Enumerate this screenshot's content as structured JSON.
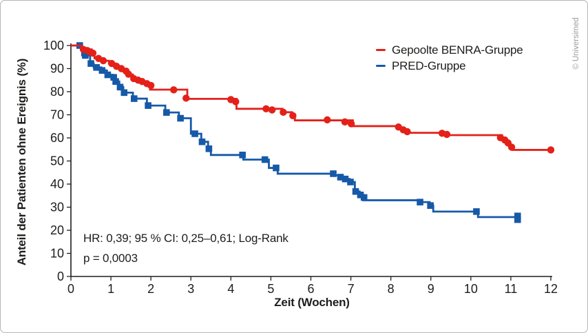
{
  "figure": {
    "copyright": "© Universimed"
  },
  "colors": {
    "axis": "#1d1d1b",
    "text": "#1d1d1b",
    "muted_text": "#9d9d9c",
    "border": "#b5b5b5",
    "background": "#ffffff",
    "benra_red": "#e32119",
    "pred_blue": "#1659a8"
  },
  "chart_data": {
    "type": "line",
    "subtype": "kaplan-meier-step",
    "title": "",
    "xlabel": "Zeit (Wochen)",
    "ylabel": "Anteil der Patienten ohne Ereignis (%)",
    "xlim": [
      0,
      12
    ],
    "ylim": [
      0,
      100
    ],
    "x_ticks": [
      0,
      1,
      2,
      3,
      4,
      5,
      6,
      7,
      8,
      9,
      10,
      11,
      12
    ],
    "y_ticks": [
      0,
      10,
      20,
      30,
      40,
      50,
      60,
      70,
      80,
      90,
      100
    ],
    "grid": false,
    "legend_position": "top-right-inside",
    "annotation": {
      "line1": "HR: 0,39; 95 % CI: 0,25–0,61; Log-Rank",
      "line2": "p = 0,0003"
    },
    "series": [
      {
        "name": "Gepoolte BENRA-Gruppe",
        "color": "#e32119",
        "marker": "circle",
        "extend_to": 12,
        "steps": [
          [
            0,
            100
          ],
          [
            0.26,
            98.3
          ],
          [
            0.52,
            96.7
          ],
          [
            0.59,
            94.5
          ],
          [
            0.81,
            93.4
          ],
          [
            0.95,
            92.2
          ],
          [
            1.12,
            91
          ],
          [
            1.28,
            88.9
          ],
          [
            1.41,
            87.4
          ],
          [
            1.55,
            85.7
          ],
          [
            1.66,
            85
          ],
          [
            1.76,
            84.4
          ],
          [
            1.88,
            83.5
          ],
          [
            1.98,
            80.9
          ],
          [
            2.91,
            76.9
          ],
          [
            4.14,
            72.6
          ],
          [
            5.29,
            71.1
          ],
          [
            5.53,
            69.6
          ],
          [
            5.6,
            67.6
          ],
          [
            7.05,
            65.1
          ],
          [
            8.18,
            64.5
          ],
          [
            8.3,
            63.3
          ],
          [
            8.42,
            62.2
          ],
          [
            9.42,
            61.2
          ],
          [
            10.78,
            59.8
          ],
          [
            10.88,
            58.7
          ],
          [
            10.96,
            56.9
          ],
          [
            11.04,
            54.8
          ]
        ],
        "censor_markers": [
          [
            0.31,
            98.3
          ],
          [
            0.41,
            97.8
          ],
          [
            0.48,
            97.2
          ],
          [
            0.55,
            96.7
          ],
          [
            0.69,
            94.4
          ],
          [
            0.81,
            93.4
          ],
          [
            1.02,
            92.2
          ],
          [
            1.14,
            91
          ],
          [
            1.26,
            90
          ],
          [
            1.38,
            88.9
          ],
          [
            1.44,
            87.6
          ],
          [
            1.57,
            85.7
          ],
          [
            1.68,
            85
          ],
          [
            1.78,
            84.4
          ],
          [
            1.9,
            83.5
          ],
          [
            2,
            82.7
          ],
          [
            2.57,
            80.8
          ],
          [
            2.88,
            77.2
          ],
          [
            4,
            76.6
          ],
          [
            4.12,
            75.7
          ],
          [
            4.88,
            72.6
          ],
          [
            5.03,
            72.1
          ],
          [
            5.31,
            71.1
          ],
          [
            5.55,
            69.6
          ],
          [
            6.41,
            67.8
          ],
          [
            6.85,
            66.9
          ],
          [
            7.01,
            66.1
          ],
          [
            8.19,
            64.7
          ],
          [
            8.31,
            63.5
          ],
          [
            8.41,
            62.7
          ],
          [
            9.28,
            62
          ],
          [
            9.4,
            61.5
          ],
          [
            10.74,
            60.1
          ],
          [
            10.85,
            59.1
          ],
          [
            10.93,
            57.8
          ],
          [
            11.02,
            56
          ],
          [
            12,
            54.8
          ]
        ]
      },
      {
        "name": "PRED-Gruppe",
        "color": "#1659a8",
        "marker": "square",
        "extend_to": 11.17,
        "steps": [
          [
            0,
            100
          ],
          [
            0.28,
            95.7
          ],
          [
            0.48,
            92.2
          ],
          [
            0.57,
            90.5
          ],
          [
            0.76,
            89.2
          ],
          [
            0.9,
            87.3
          ],
          [
            1.05,
            86.2
          ],
          [
            1.1,
            84.4
          ],
          [
            1.21,
            82
          ],
          [
            1.31,
            79.6
          ],
          [
            1.55,
            77
          ],
          [
            1.9,
            74
          ],
          [
            2.36,
            71
          ],
          [
            2.7,
            68.5
          ],
          [
            3,
            61.8
          ],
          [
            3.26,
            58.3
          ],
          [
            3.43,
            55.3
          ],
          [
            3.5,
            52.6
          ],
          [
            4.31,
            50.6
          ],
          [
            4.95,
            47
          ],
          [
            5.17,
            44.5
          ],
          [
            6.58,
            43.8
          ],
          [
            6.74,
            43
          ],
          [
            6.85,
            42.2
          ],
          [
            6.97,
            40.9
          ],
          [
            7.1,
            36.8
          ],
          [
            7.22,
            35.3
          ],
          [
            7.31,
            33
          ],
          [
            8.74,
            32.2
          ],
          [
            8.97,
            30.7
          ],
          [
            9.06,
            28.1
          ],
          [
            10.18,
            25.7
          ]
        ],
        "censor_markers": [
          [
            0.22,
            100
          ],
          [
            0.36,
            95.7
          ],
          [
            0.5,
            92.2
          ],
          [
            0.64,
            90.5
          ],
          [
            0.78,
            89.2
          ],
          [
            0.92,
            87.3
          ],
          [
            1.07,
            86.2
          ],
          [
            1.12,
            84.4
          ],
          [
            1.23,
            82
          ],
          [
            1.33,
            79.6
          ],
          [
            1.58,
            77
          ],
          [
            1.93,
            74
          ],
          [
            2.39,
            71
          ],
          [
            2.74,
            68.5
          ],
          [
            3.1,
            61.8
          ],
          [
            3.28,
            58.3
          ],
          [
            3.45,
            55.3
          ],
          [
            4.29,
            52.6
          ],
          [
            4.85,
            50.6
          ],
          [
            5.13,
            47
          ],
          [
            6.56,
            44.5
          ],
          [
            6.74,
            43
          ],
          [
            6.86,
            42.2
          ],
          [
            6.99,
            40.9
          ],
          [
            7.12,
            36.8
          ],
          [
            7.24,
            35.3
          ],
          [
            7.33,
            34.2
          ],
          [
            8.73,
            32.2
          ],
          [
            8.99,
            30.7
          ],
          [
            10.14,
            28.1
          ],
          [
            11.17,
            26.2
          ],
          [
            11.17,
            24.6
          ]
        ]
      }
    ]
  }
}
